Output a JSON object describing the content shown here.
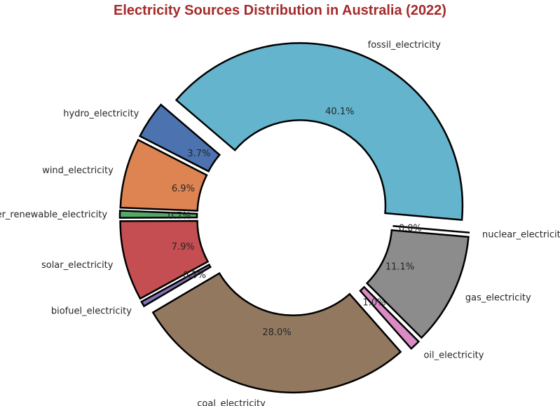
{
  "chart_data": {
    "type": "pie",
    "title": "Electricity Sources Distribution in Australia (2022)",
    "title_color": "#A52A2A",
    "donut": true,
    "legend": "none",
    "slices": [
      {
        "label": "fossil_electricity",
        "value": 40.1,
        "pct_label": "40.1%",
        "color": "#64B4CE"
      },
      {
        "label": "hydro_electricity",
        "value": 3.7,
        "pct_label": "3.7%",
        "color": "#4C72B0"
      },
      {
        "label": "wind_electricity",
        "value": 6.9,
        "pct_label": "6.9%",
        "color": "#DD8452"
      },
      {
        "label": "other_renewable_electricity",
        "value": 0.7,
        "pct_label": "0.7%",
        "color": "#55A868"
      },
      {
        "label": "solar_electricity",
        "value": 7.9,
        "pct_label": "7.9%",
        "color": "#C44E52"
      },
      {
        "label": "biofuel_electricity",
        "value": 0.5,
        "pct_label": "0.5%",
        "color": "#8172B3"
      },
      {
        "label": "coal_electricity",
        "value": 28.0,
        "pct_label": "28.0%",
        "color": "#937860"
      },
      {
        "label": "oil_electricity",
        "value": 1.0,
        "pct_label": "1.0%",
        "color": "#DA8BC3"
      },
      {
        "label": "gas_electricity",
        "value": 11.1,
        "pct_label": "11.1%",
        "color": "#8C8C8C"
      },
      {
        "label": "nuclear_electricity",
        "value": 0.0,
        "pct_label": "0.0%",
        "color": "#CCB974"
      }
    ]
  }
}
